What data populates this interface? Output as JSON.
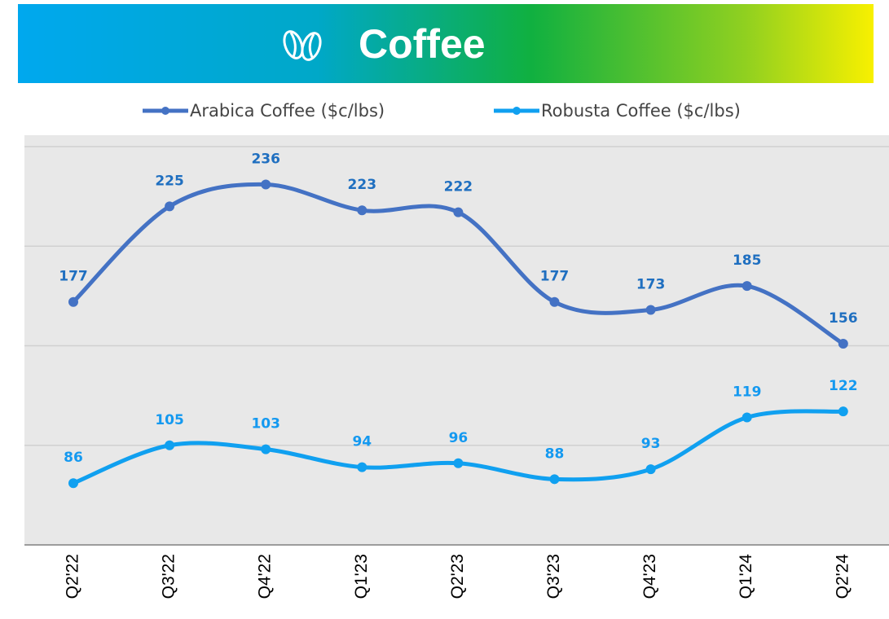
{
  "chart_data": {
    "type": "line",
    "title": "Coffee",
    "categories": [
      "Q2'22",
      "Q3'22",
      "Q4'22",
      "Q1'23",
      "Q2'23",
      "Q3'23",
      "Q4'23",
      "Q1'24",
      "Q2'24"
    ],
    "series": [
      {
        "name": "Arabica Coffee ($c/lbs)",
        "color": "#4472c4",
        "label_color": "#1f6fc0",
        "values": [
          177,
          225,
          236,
          223,
          222,
          177,
          173,
          185,
          156
        ]
      },
      {
        "name": "Robusta Coffee ($c/lbs)",
        "color": "#10a0f0",
        "label_color": "#1499f0",
        "values": [
          86,
          105,
          103,
          94,
          96,
          88,
          93,
          119,
          122
        ]
      }
    ],
    "ylim": [
      55,
      255
    ],
    "yticks": [
      55,
      105,
      155,
      205,
      255
    ],
    "grid": true,
    "legend": "top"
  }
}
